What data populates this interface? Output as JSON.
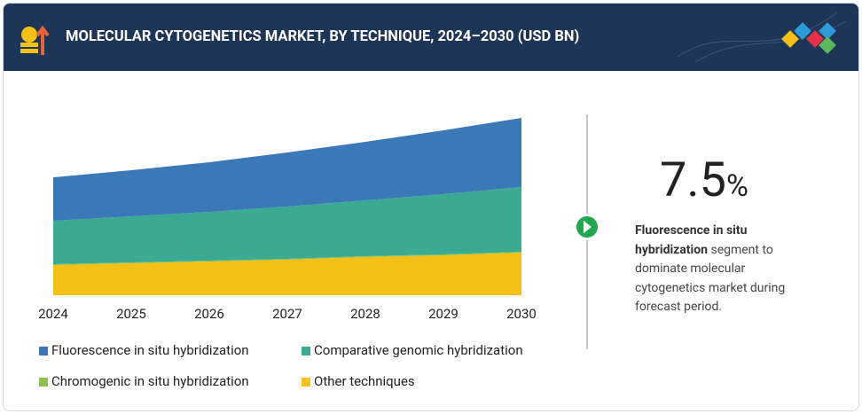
{
  "chart_data": {
    "type": "stacked_area",
    "title": "MOLECULAR CYTOGENETICS MARKET, BY TECHNIQUE, 2024–2030 (USD BN)",
    "x": [
      2024,
      2025,
      2026,
      2027,
      2028,
      2029,
      2030
    ],
    "xlim": [
      2024,
      2030
    ],
    "ylim": [
      0,
      2
    ],
    "series": [
      {
        "name": "Other techniques",
        "color": "#f5c018",
        "values": [
          0.34,
          0.36,
          0.38,
          0.4,
          0.43,
          0.45,
          0.48
        ]
      },
      {
        "name": "Chromogenic in situ hybridization",
        "color": "#8dc04f",
        "values": [
          0.01,
          0.01,
          0.01,
          0.01,
          0.01,
          0.01,
          0.01
        ]
      },
      {
        "name": "Comparative genomic hybridization",
        "color": "#3aaa92",
        "values": [
          0.49,
          0.52,
          0.55,
          0.59,
          0.63,
          0.68,
          0.73
        ]
      },
      {
        "name": "Fluorescence in situ hybridization",
        "color": "#3b78b8",
        "values": [
          0.49,
          0.52,
          0.56,
          0.61,
          0.66,
          0.72,
          0.78
        ]
      }
    ],
    "legend_order": [
      3,
      2,
      1,
      0
    ]
  },
  "highlight": {
    "number": "7.5",
    "unit": "%",
    "bold": "Fluorescence in situ hybridization",
    "text": " segment to dominate molecular cytogenetics market during forecast period."
  }
}
